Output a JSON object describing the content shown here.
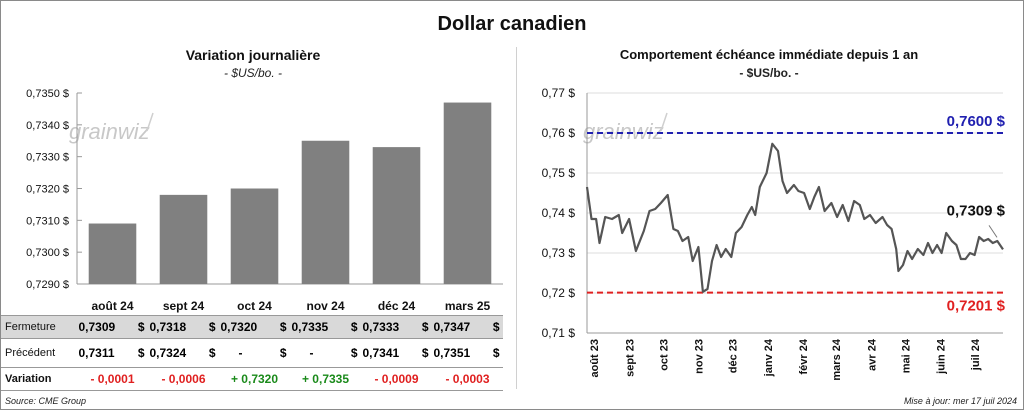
{
  "main_title": "Dollar canadien",
  "left_panel": {
    "title": "Variation  journalière",
    "unit": "- $US/bo. -",
    "table": {
      "rows": [
        {
          "label": "Fermeture",
          "values": [
            "0,7309",
            "0,7318",
            "0,7320",
            "0,7335",
            "0,7333",
            "0,7347"
          ],
          "currency": "$"
        },
        {
          "label": "Précédent",
          "values": [
            "0,7311",
            "0,7324",
            "-",
            "-",
            "0,7341",
            "0,7351"
          ],
          "currency": "$"
        },
        {
          "label": "Variation",
          "values": [
            "- 0,0001",
            "- 0,0006",
            "+ 0,7320",
            "+ 0,7335",
            "- 0,0009",
            "- 0,0003"
          ]
        }
      ],
      "variation_colors": [
        "#e02020",
        "#e02020",
        "#1a8a1a",
        "#1a8a1a",
        "#e02020",
        "#e02020"
      ]
    }
  },
  "right_panel": {
    "title": "Comportement échéance immédiate depuis 1 an",
    "unit": "- $US/bo. -"
  },
  "watermark": "grainwiz",
  "source": "Source: CME Group",
  "updated": "Mise à jour: mer 17 juil 2024",
  "chart_data": [
    {
      "type": "bar",
      "categories": [
        "août 24",
        "sept 24",
        "oct 24",
        "nov 24",
        "déc 24",
        "mars 25"
      ],
      "values": [
        0.7309,
        0.7318,
        0.732,
        0.7335,
        0.7333,
        0.7347
      ],
      "ylim": [
        0.729,
        0.735
      ],
      "yticks": [
        "0,7290 $",
        "0,7300 $",
        "0,7310 $",
        "0,7320 $",
        "0,7330 $",
        "0,7340 $",
        "0,7350 $"
      ],
      "bar_color": "#808080"
    },
    {
      "type": "line",
      "ylim": [
        0.71,
        0.77
      ],
      "yticks": [
        "0,71 $",
        "0,72 $",
        "0,73 $",
        "0,74 $",
        "0,75 $",
        "0,76 $",
        "0,77 $"
      ],
      "xticks": [
        "août 23",
        "sept 23",
        "oct 23",
        "nov 23",
        "déc 23",
        "janv 24",
        "févr 24",
        "mars 24",
        "avr 24",
        "mai 24",
        "juin 24",
        "juil 24"
      ],
      "x_start": "2023-07-17",
      "x_end": "2024-07-17",
      "series": [
        {
          "color": "#555555",
          "points": [
            [
              "2023-07-17",
              0.7465
            ],
            [
              "2023-07-21",
              0.7385
            ],
            [
              "2023-07-25",
              0.7385
            ],
            [
              "2023-07-28",
              0.7325
            ],
            [
              "2023-08-02",
              0.739
            ],
            [
              "2023-08-08",
              0.7385
            ],
            [
              "2023-08-14",
              0.7395
            ],
            [
              "2023-08-17",
              0.735
            ],
            [
              "2023-08-23",
              0.7385
            ],
            [
              "2023-08-29",
              0.7305
            ],
            [
              "2023-09-05",
              0.7355
            ],
            [
              "2023-09-10",
              0.7405
            ],
            [
              "2023-09-15",
              0.741
            ],
            [
              "2023-09-20",
              0.7425
            ],
            [
              "2023-09-26",
              0.7445
            ],
            [
              "2023-10-01",
              0.736
            ],
            [
              "2023-10-05",
              0.7355
            ],
            [
              "2023-10-09",
              0.733
            ],
            [
              "2023-10-14",
              0.734
            ],
            [
              "2023-10-18",
              0.728
            ],
            [
              "2023-10-23",
              0.7315
            ],
            [
              "2023-10-27",
              0.7203
            ],
            [
              "2023-10-31",
              0.721
            ],
            [
              "2023-11-04",
              0.728
            ],
            [
              "2023-11-08",
              0.732
            ],
            [
              "2023-11-12",
              0.729
            ],
            [
              "2023-11-16",
              0.731
            ],
            [
              "2023-11-21",
              0.729
            ],
            [
              "2023-11-25",
              0.735
            ],
            [
              "2023-11-30",
              0.7365
            ],
            [
              "2023-12-05",
              0.7395
            ],
            [
              "2023-12-09",
              0.7415
            ],
            [
              "2023-12-12",
              0.7395
            ],
            [
              "2023-12-16",
              0.7465
            ],
            [
              "2023-12-22",
              0.75
            ],
            [
              "2023-12-27",
              0.7573
            ],
            [
              "2024-01-01",
              0.7555
            ],
            [
              "2024-01-05",
              0.748
            ],
            [
              "2024-01-09",
              0.745
            ],
            [
              "2024-01-15",
              0.747
            ],
            [
              "2024-01-19",
              0.7455
            ],
            [
              "2024-01-24",
              0.745
            ],
            [
              "2024-01-29",
              0.741
            ],
            [
              "2024-02-02",
              0.744
            ],
            [
              "2024-02-06",
              0.7465
            ],
            [
              "2024-02-11",
              0.7405
            ],
            [
              "2024-02-17",
              0.7425
            ],
            [
              "2024-02-22",
              0.739
            ],
            [
              "2024-02-27",
              0.742
            ],
            [
              "2024-03-03",
              0.738
            ],
            [
              "2024-03-08",
              0.743
            ],
            [
              "2024-03-13",
              0.742
            ],
            [
              "2024-03-17",
              0.7385
            ],
            [
              "2024-03-22",
              0.7395
            ],
            [
              "2024-03-27",
              0.7375
            ],
            [
              "2024-04-02",
              0.739
            ],
            [
              "2024-04-06",
              0.737
            ],
            [
              "2024-04-10",
              0.736
            ],
            [
              "2024-04-14",
              0.731
            ],
            [
              "2024-04-16",
              0.7255
            ],
            [
              "2024-04-20",
              0.727
            ],
            [
              "2024-04-24",
              0.7305
            ],
            [
              "2024-04-28",
              0.7285
            ],
            [
              "2024-05-03",
              0.731
            ],
            [
              "2024-05-08",
              0.7295
            ],
            [
              "2024-05-12",
              0.7325
            ],
            [
              "2024-05-16",
              0.73
            ],
            [
              "2024-05-20",
              0.732
            ],
            [
              "2024-05-24",
              0.73
            ],
            [
              "2024-05-28",
              0.735
            ],
            [
              "2024-06-02",
              0.733
            ],
            [
              "2024-06-06",
              0.732
            ],
            [
              "2024-06-10",
              0.7285
            ],
            [
              "2024-06-14",
              0.7285
            ],
            [
              "2024-06-18",
              0.73
            ],
            [
              "2024-06-22",
              0.7295
            ],
            [
              "2024-06-26",
              0.734
            ],
            [
              "2024-06-30",
              0.733
            ],
            [
              "2024-07-04",
              0.7335
            ],
            [
              "2024-07-08",
              0.7325
            ],
            [
              "2024-07-12",
              0.733
            ],
            [
              "2024-07-17",
              0.7309
            ]
          ]
        }
      ],
      "ref_lines": [
        {
          "value": 0.76,
          "label": "0,7600 $",
          "color": "#2020b0"
        },
        {
          "value": 0.7201,
          "label": "0,7201 $",
          "color": "#e02020"
        }
      ],
      "last_label": "0,7309 $"
    }
  ]
}
